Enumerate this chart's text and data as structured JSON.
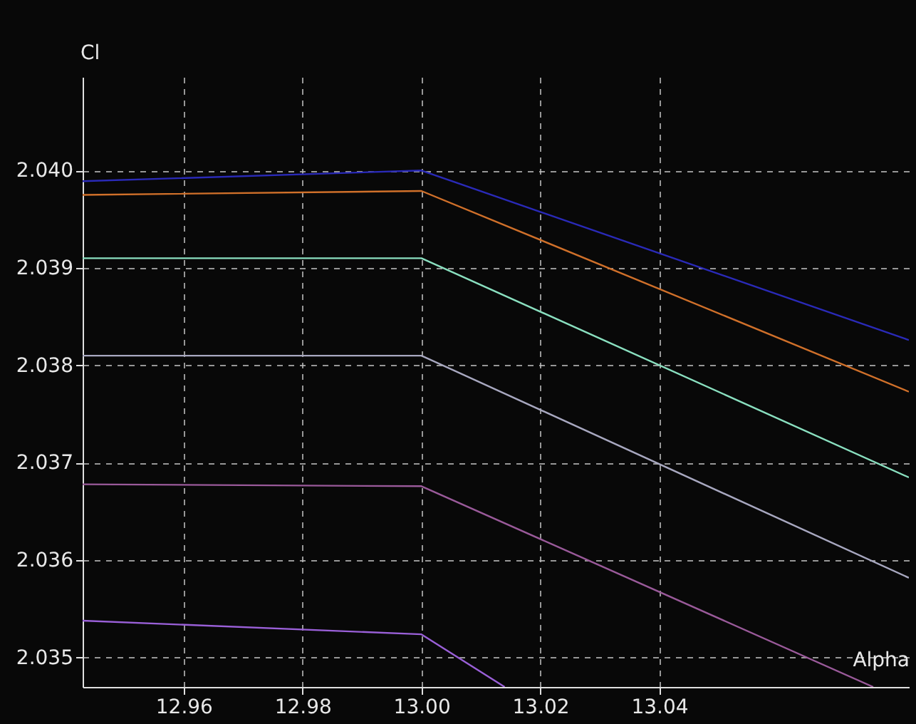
{
  "chart_data": {
    "type": "line",
    "xlabel": "Alpha",
    "ylabel": "Cl",
    "xlim": [
      12.943,
      13.082
    ],
    "ylim": [
      2.0347,
      2.04096
    ],
    "xticks": [
      12.96,
      12.98,
      {
        "value": 13.0,
        "label": "13.00"
      },
      13.02,
      13.04
    ],
    "yticks": [
      2.035,
      2.036,
      2.037,
      2.038,
      2.039,
      {
        "value": 2.04,
        "label": "2.040"
      }
    ],
    "grid": true,
    "marker": "none",
    "line_style": "solid",
    "series": [
      {
        "color": "#2a2ab8",
        "x": [
          12.943,
          13.0,
          13.082
        ],
        "values": [
          2.03989,
          2.04,
          2.03826
        ]
      },
      {
        "color": "#d0702a",
        "x": [
          12.943,
          13.0,
          13.082
        ],
        "values": [
          2.03975,
          2.03979,
          2.03773
        ]
      },
      {
        "color": "#8ae0c0",
        "x": [
          12.943,
          13.0,
          13.082
        ],
        "values": [
          2.0391,
          2.0391,
          2.03685
        ]
      },
      {
        "color": "#a8a8c0",
        "x": [
          12.943,
          13.0,
          13.082
        ],
        "values": [
          2.0381,
          2.0381,
          2.03582
        ]
      },
      {
        "color": "#9a5a9a",
        "x": [
          12.943,
          13.0,
          13.076
        ],
        "values": [
          2.03678,
          2.03676,
          2.0347
        ]
      },
      {
        "color": "#9a60d8",
        "x": [
          12.943,
          13.0,
          13.014
        ],
        "values": [
          2.03538,
          2.03524,
          2.0347
        ]
      }
    ]
  }
}
